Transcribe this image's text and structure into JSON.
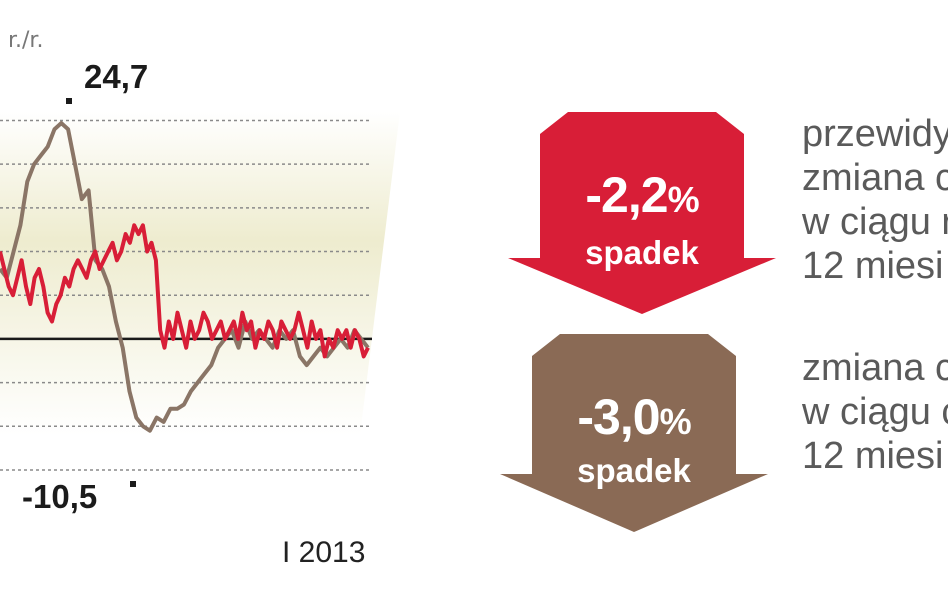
{
  "chart_data": {
    "type": "line",
    "unit_label": "r./r.",
    "x_end_label": "I 2013",
    "annotations": {
      "max": "24,7",
      "min": "-10,5"
    },
    "ylim": [
      -15,
      27
    ],
    "gridlines": [
      25,
      20,
      15,
      10,
      5,
      -5,
      -10,
      -15
    ],
    "zero_line": 0,
    "series": [
      {
        "color": "#d81e37",
        "values": [
          10,
          8,
          6,
          5,
          7,
          9,
          6,
          4,
          7,
          8,
          6,
          3,
          2,
          4,
          5,
          7,
          6,
          8,
          9,
          8,
          7,
          9,
          10,
          8,
          9,
          10,
          11,
          9,
          10,
          12,
          11,
          13,
          12,
          13,
          10,
          11,
          9,
          1,
          -1,
          2,
          0,
          3,
          1,
          -1,
          2,
          0,
          1,
          3,
          2,
          0,
          1,
          2,
          0,
          1,
          2,
          0,
          3,
          1,
          2,
          -1,
          1,
          0,
          2,
          1,
          -1,
          2,
          1,
          0,
          1,
          3,
          1,
          -1,
          2,
          0,
          1,
          -2,
          0,
          -1,
          1,
          0,
          1,
          -1,
          1,
          0,
          -2,
          -1
        ]
      },
      {
        "color": "#8a7566",
        "values": [
          8,
          7,
          10,
          13,
          18,
          20,
          21,
          22,
          24,
          24.7,
          24,
          20,
          16,
          17,
          9,
          8,
          6,
          2,
          -1,
          -6,
          -9,
          -10,
          -10.5,
          -9,
          -9.5,
          -8,
          -8,
          -7.5,
          -6,
          -5,
          -4,
          -3,
          -1,
          0,
          1,
          -1,
          2,
          0,
          1,
          0,
          -1,
          1,
          0,
          1,
          -2,
          -3,
          -2,
          -1,
          -2,
          -1,
          0,
          -1,
          1,
          0,
          -1
        ]
      }
    ]
  },
  "indicators": [
    {
      "value": "-2,2",
      "percent_sign": "%",
      "sub": "spadek",
      "color": "#d81e37",
      "lines": [
        "przewidy",
        "zmiana c",
        "w ciągu r",
        "12 miesi"
      ]
    },
    {
      "value": "-3,0",
      "percent_sign": "%",
      "sub": "spadek",
      "color": "#8a6a55",
      "lines": [
        "zmiana c",
        "w ciągu c",
        "12 miesi"
      ]
    }
  ]
}
